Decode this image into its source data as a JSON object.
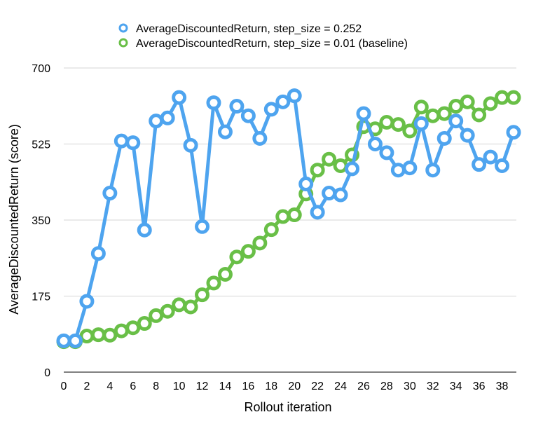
{
  "chart_data": {
    "type": "line",
    "xlabel": "Rollout iteration",
    "ylabel": "AverageDiscountedReturn (score)",
    "xlim": [
      0,
      39
    ],
    "ylim": [
      0,
      700
    ],
    "x_ticks": [
      "0",
      "2",
      "4",
      "6",
      "8",
      "10",
      "12",
      "14",
      "16",
      "18",
      "20",
      "22",
      "24",
      "26",
      "28",
      "30",
      "32",
      "34",
      "36",
      "38"
    ],
    "y_ticks": [
      "0",
      "175",
      "350",
      "525",
      "700"
    ],
    "grid": "horizontal",
    "legend_position": "top",
    "x": [
      0,
      1,
      2,
      3,
      4,
      5,
      6,
      7,
      8,
      9,
      10,
      11,
      12,
      13,
      14,
      15,
      16,
      17,
      18,
      19,
      20,
      21,
      22,
      23,
      24,
      25,
      26,
      27,
      28,
      29,
      30,
      31,
      32,
      33,
      34,
      35,
      36,
      37,
      38,
      39
    ],
    "series": [
      {
        "name": "AverageDiscountedReturn, step_size = 0.01 (baseline)",
        "color": "#69bf47",
        "values": [
          70,
          70,
          83,
          86,
          85,
          95,
          102,
          112,
          130,
          140,
          155,
          150,
          178,
          205,
          225,
          265,
          278,
          297,
          328,
          358,
          362,
          410,
          465,
          490,
          475,
          500,
          565,
          560,
          575,
          570,
          555,
          610,
          590,
          595,
          612,
          622,
          592,
          618,
          632,
          632
        ]
      },
      {
        "name": "AverageDiscountedReturn, step_size = 0.252",
        "color": "#4ea4ef",
        "values": [
          72,
          72,
          163,
          273,
          412,
          532,
          528,
          327,
          578,
          585,
          632,
          522,
          335,
          620,
          553,
          612,
          590,
          538,
          605,
          622,
          636,
          433,
          368,
          412,
          408,
          468,
          595,
          525,
          505,
          465,
          470,
          572,
          465,
          538,
          578,
          545,
          478,
          495,
          475,
          552
        ]
      }
    ]
  },
  "legend": [
    {
      "label": "AverageDiscountedReturn, step_size = 0.252",
      "color": "#4ea4ef"
    },
    {
      "label": "AverageDiscountedReturn, step_size = 0.01 (baseline)",
      "color": "#69bf47"
    }
  ]
}
